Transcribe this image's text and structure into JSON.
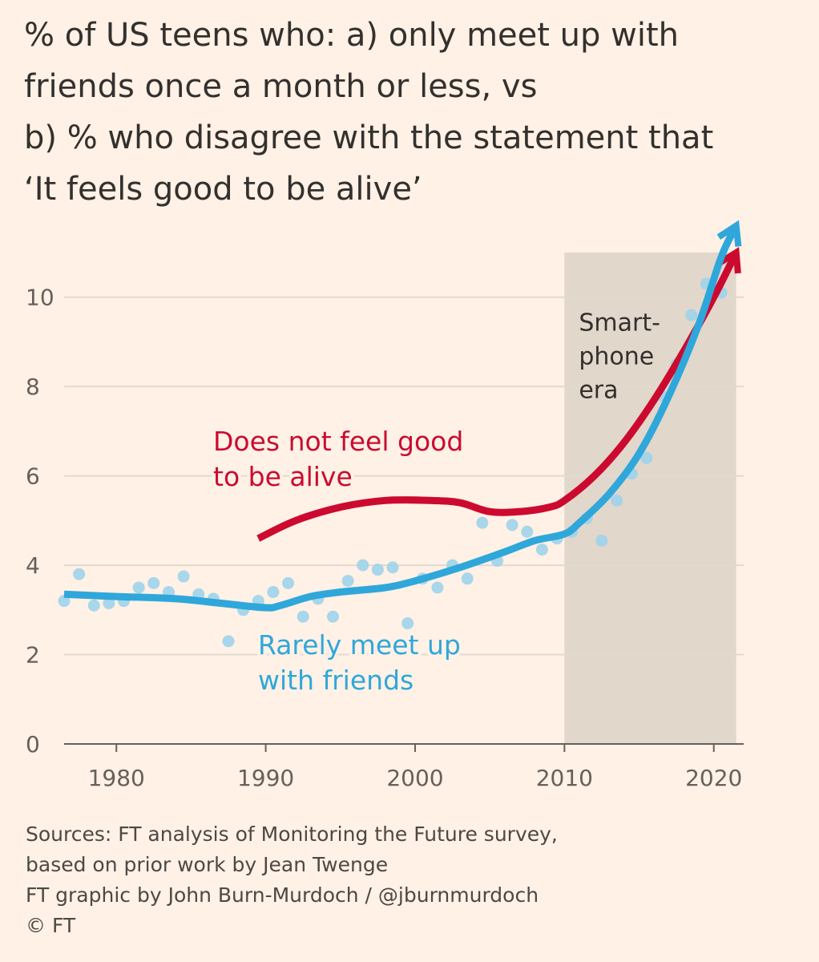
{
  "title": {
    "lines": [
      "% of US teens who: a) only meet up with",
      "friends once a month or less, vs",
      "b) % who disagree with the statement that",
      "‘It feels good to be alive’"
    ]
  },
  "colors": {
    "background": "#fff1e5",
    "red_series": "#cc0a30",
    "blue_series": "#2fa7da",
    "dots": "#9fd3ea",
    "shade": "#e2d7cb",
    "grid": "#e3d9cf"
  },
  "chart_data": {
    "type": "line",
    "title": "% of US teens who: a) only meet up with friends once a month or less, vs b) % who disagree with the statement that ‘It feels good to be alive’",
    "xlabel": "",
    "ylabel": "",
    "xlim": [
      1976.5,
      2022
    ],
    "ylim": [
      0,
      11
    ],
    "x_ticks": [
      1980,
      1990,
      2000,
      2010,
      2020
    ],
    "x_tick_labels": [
      "1980",
      "1990",
      "2000",
      "2010",
      "2020"
    ],
    "y_ticks": [
      0,
      2,
      4,
      6,
      8,
      10
    ],
    "y_tick_labels": [
      "0",
      "2",
      "4",
      "6",
      "8",
      "10"
    ],
    "grid": true,
    "shaded_region": {
      "x_start": 2010,
      "x_end": 2021.5,
      "label": [
        "Smart-",
        "phone",
        "era"
      ]
    },
    "series": [
      {
        "name": "Does not feel good to be alive",
        "label_lines": [
          "Does not feel good",
          "to be alive"
        ],
        "style": "smoothed-trend-with-arrow",
        "x": [
          1989.5,
          1992,
          1995,
          1998,
          2001,
          2003,
          2005,
          2007,
          2009,
          2010,
          2012,
          2014,
          2016,
          2018,
          2020,
          2021.5
        ],
        "y": [
          4.6,
          5.0,
          5.3,
          5.45,
          5.45,
          5.4,
          5.2,
          5.2,
          5.3,
          5.45,
          6.0,
          6.75,
          7.7,
          8.8,
          10.0,
          11.0
        ]
      },
      {
        "name": "Rarely meet up with friends",
        "label_lines": [
          "Rarely meet up",
          "with friends"
        ],
        "style": "smoothed-trend-with-arrow",
        "x": [
          1976.5,
          1980,
          1984,
          1987,
          1990,
          1991,
          1993,
          1995,
          1998,
          2000,
          2003,
          2006,
          2008,
          2010,
          2011,
          2013,
          2015,
          2017,
          2019,
          2020.5,
          2021.5
        ],
        "y": [
          3.35,
          3.3,
          3.25,
          3.15,
          3.05,
          3.1,
          3.3,
          3.4,
          3.5,
          3.65,
          3.95,
          4.3,
          4.55,
          4.7,
          4.95,
          5.6,
          6.5,
          7.8,
          9.4,
          10.9,
          11.6
        ]
      },
      {
        "name": "Rarely meet up with friends (annual survey values)",
        "style": "scatter",
        "x": [
          1976.5,
          1977.5,
          1978.5,
          1979.5,
          1980.5,
          1981.5,
          1982.5,
          1983.5,
          1984.5,
          1985.5,
          1986.5,
          1987.5,
          1988.5,
          1989.5,
          1990.5,
          1991.5,
          1992.5,
          1993.5,
          1994.5,
          1995.5,
          1996.5,
          1997.5,
          1998.5,
          1999.5,
          2000.5,
          2001.5,
          2002.5,
          2003.5,
          2004.5,
          2005.5,
          2006.5,
          2007.5,
          2008.5,
          2009.5,
          2010.5,
          2011.5,
          2012.5,
          2013.5,
          2014.5,
          2015.5,
          2016.5,
          2017.5,
          2018.5,
          2019.5,
          2020.5
        ],
        "y": [
          3.2,
          3.8,
          3.1,
          3.15,
          3.2,
          3.5,
          3.6,
          3.4,
          3.75,
          3.35,
          3.25,
          2.3,
          3.0,
          3.2,
          3.4,
          3.6,
          2.85,
          3.25,
          2.85,
          3.65,
          4.0,
          3.9,
          3.95,
          2.7,
          3.7,
          3.5,
          4.0,
          3.7,
          4.95,
          4.1,
          4.9,
          4.75,
          4.35,
          4.6,
          4.75,
          5.05,
          4.55,
          5.45,
          6.05,
          6.4,
          7.8,
          8.5,
          9.6,
          10.3,
          10.1
        ]
      }
    ]
  },
  "sources": {
    "lines": [
      "Sources: FT analysis of Monitoring the Future survey,",
      "based on prior work by Jean Twenge",
      "FT graphic by John Burn-Murdoch / @jburnmurdoch",
      "© FT"
    ]
  }
}
